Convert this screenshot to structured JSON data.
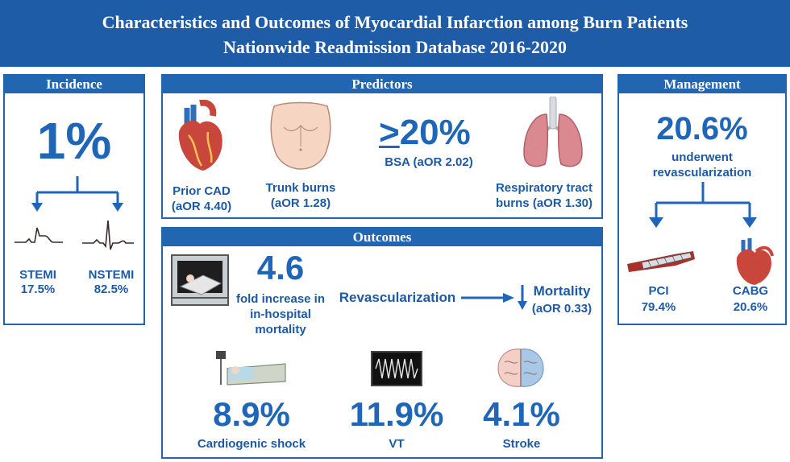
{
  "header": {
    "line1": "Characteristics and Outcomes of Myocardial Infarction among Burn Patients",
    "line2": "Nationwide Readmission Database 2016-2020"
  },
  "incidence": {
    "title": "Incidence",
    "value": "1%",
    "stemi_label": "STEMI",
    "stemi_value": "17.5%",
    "nstemi_label": "NSTEMI",
    "nstemi_value": "82.5%"
  },
  "predictors": {
    "title": "Predictors",
    "cad_label": "Prior CAD",
    "cad_aor": "(aOR 4.40)",
    "trunk_label": "Trunk burns",
    "trunk_aor": "(aOR 1.28)",
    "bsa_value": "20%",
    "bsa_aor": "BSA (aOR 2.02)",
    "resp_label": "Respiratory tract",
    "resp_aor": "burns (aOR 1.30)"
  },
  "management": {
    "title": "Management",
    "value": "20.6%",
    "text1": "underwent",
    "text2": "revascularization",
    "pci_label": "PCI",
    "pci_value": "79.4%",
    "cabg_label": "CABG",
    "cabg_value": "20.6%"
  },
  "outcomes": {
    "title": "Outcomes",
    "fold_value": "4.6",
    "fold_text1": "fold increase in",
    "fold_text2": "in-hospital",
    "fold_text3": "mortality",
    "revasc_label": "Revascularization",
    "mortality_label": "Mortality",
    "mortality_aor": "(aOR 0.33)",
    "shock_value": "8.9%",
    "shock_label": "Cardiogenic shock",
    "vt_value": "11.9%",
    "vt_label": "VT",
    "stroke_value": "4.1%",
    "stroke_label": "Stroke"
  },
  "colors": {
    "brand": "#1f5ca8",
    "accent": "#1f66b8",
    "heart": "#c8463b"
  },
  "icons": [
    "heart-icon",
    "torso-icon",
    "lungs-icon",
    "morgue-icon",
    "hospital-bed-icon",
    "monitor-icon",
    "brain-icon",
    "stent-icon",
    "heart-bypass-icon",
    "ecg-icon"
  ]
}
